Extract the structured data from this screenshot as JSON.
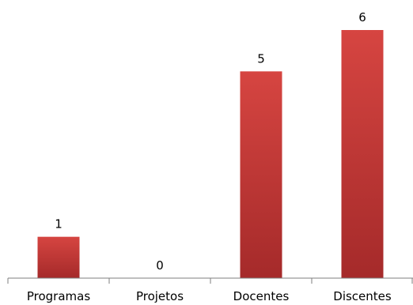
{
  "chart_data": {
    "type": "bar",
    "categories": [
      "Programas",
      "Projetos",
      "Docentes",
      "Discentes"
    ],
    "values": [
      1,
      0,
      5,
      6
    ],
    "data_labels": [
      "1",
      "0",
      "5",
      "6"
    ],
    "title": "",
    "xlabel": "",
    "ylabel": "",
    "ylim": [
      0,
      6
    ],
    "grid": false,
    "legend": "none",
    "bar_color_top": "#d64541",
    "bar_color_bottom": "#a52a2a"
  }
}
